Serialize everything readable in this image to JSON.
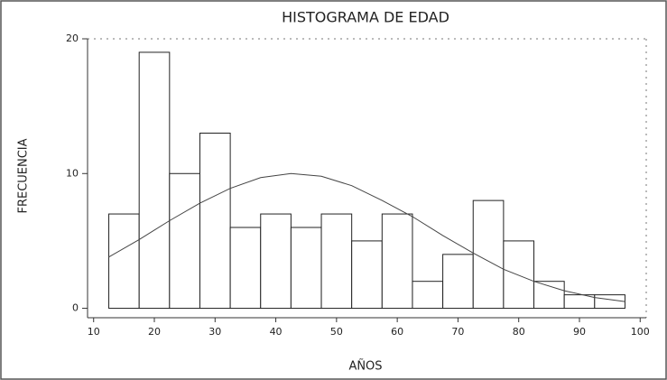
{
  "chart_data": {
    "type": "histogram",
    "title": "HISTOGRAMA DE EDAD",
    "x_label": "AÑOS",
    "y_label": "FRECUENCIA",
    "bins": [
      12.5,
      17.5,
      22.5,
      27.5,
      32.5,
      37.5,
      42.5,
      47.5,
      52.5,
      57.5,
      62.5,
      67.5,
      72.5,
      77.5,
      82.5,
      87.5,
      92.5,
      97.5
    ],
    "counts": [
      7,
      19,
      10,
      13,
      6,
      7,
      6,
      7,
      5,
      7,
      2,
      4,
      8,
      5,
      2,
      1,
      1
    ],
    "color": "#ffffff",
    "curve": {
      "x": [
        12.5,
        17.5,
        22.5,
        27.5,
        32.5,
        37.5,
        42.5,
        47.5,
        52.5,
        57.5,
        62.5,
        67.5,
        72.5,
        77.5,
        82.5,
        87.5,
        92.5,
        97.5
      ],
      "values": [
        3.8,
        5.1,
        6.5,
        7.8,
        8.9,
        9.7,
        10.0,
        9.8,
        9.1,
        8.0,
        6.8,
        5.4,
        4.1,
        2.9,
        2.0,
        1.3,
        0.8,
        0.5
      ]
    },
    "xlim": [
      9,
      101
    ],
    "xticks": [
      10,
      20,
      30,
      40,
      50,
      60,
      70,
      80,
      90,
      100
    ],
    "ylim": [
      -0.7,
      20
    ],
    "yticks": [
      0,
      10,
      20
    ]
  }
}
